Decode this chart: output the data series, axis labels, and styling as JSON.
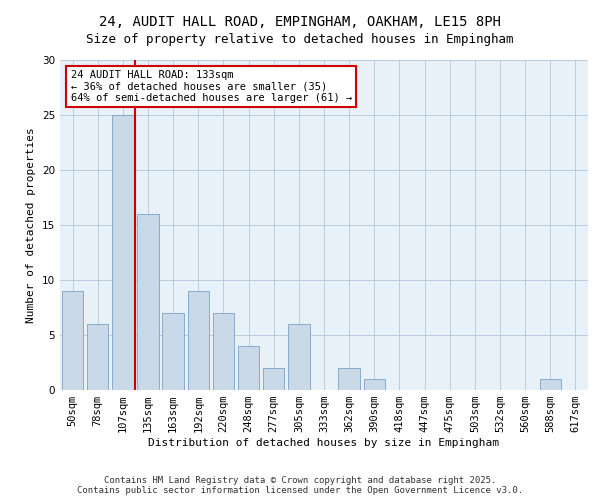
{
  "title": "24, AUDIT HALL ROAD, EMPINGHAM, OAKHAM, LE15 8PH",
  "subtitle": "Size of property relative to detached houses in Empingham",
  "xlabel": "Distribution of detached houses by size in Empingham",
  "ylabel": "Number of detached properties",
  "bar_labels": [
    "50sqm",
    "78sqm",
    "107sqm",
    "135sqm",
    "163sqm",
    "192sqm",
    "220sqm",
    "248sqm",
    "277sqm",
    "305sqm",
    "333sqm",
    "362sqm",
    "390sqm",
    "418sqm",
    "447sqm",
    "475sqm",
    "503sqm",
    "532sqm",
    "560sqm",
    "588sqm",
    "617sqm"
  ],
  "bar_values": [
    9,
    6,
    25,
    16,
    7,
    9,
    7,
    4,
    2,
    6,
    0,
    2,
    1,
    0,
    0,
    0,
    0,
    0,
    0,
    1,
    0
  ],
  "bar_color": "#c9d9e8",
  "bar_edgecolor": "#7ba3c8",
  "vline_color": "#cc0000",
  "annotation_text": "24 AUDIT HALL ROAD: 133sqm\n← 36% of detached houses are smaller (35)\n64% of semi-detached houses are larger (61) →",
  "annotation_box_edgecolor": "#cc0000",
  "ylim": [
    0,
    30
  ],
  "yticks": [
    0,
    5,
    10,
    15,
    20,
    25,
    30
  ],
  "grid_color": "#b8ccdc",
  "background_color": "#e8f0f8",
  "footer_text": "Contains HM Land Registry data © Crown copyright and database right 2025.\nContains public sector information licensed under the Open Government Licence v3.0.",
  "title_fontsize": 10,
  "subtitle_fontsize": 9,
  "axis_label_fontsize": 8,
  "tick_fontsize": 7.5,
  "annotation_fontsize": 7.5,
  "footer_fontsize": 6.5
}
